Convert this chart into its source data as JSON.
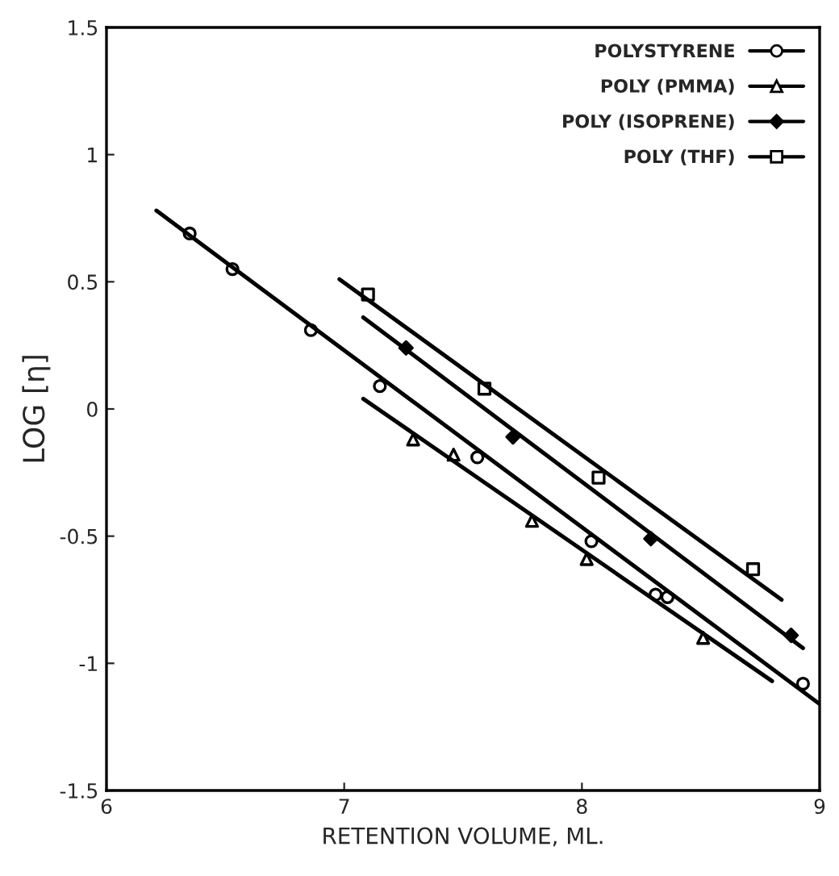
{
  "chart_data": {
    "type": "scatter",
    "xlabel": "RETENTION VOLUME, ML.",
    "ylabel": "LOG [η]",
    "xlim": [
      6,
      9
    ],
    "xticks": [
      6,
      7,
      8,
      9
    ],
    "ylim": [
      -1.5,
      1.5
    ],
    "yticks": [
      {
        "value": -1.5,
        "label": "-1.5"
      },
      {
        "value": -1,
        "label": "-1"
      },
      {
        "value": -0.5,
        "label": "-0.5"
      },
      0,
      0.5,
      1,
      1.5
    ],
    "legend": "top right",
    "grid": false,
    "series": [
      {
        "name": "POLYSTYRENE",
        "marker": "circle",
        "color": "#000000",
        "x": [
          6.35,
          6.53,
          6.86,
          7.15,
          7.56,
          8.04,
          8.31,
          8.36,
          8.93
        ],
        "values": [
          0.69,
          0.55,
          0.31,
          0.09,
          -0.19,
          -0.52,
          -0.73,
          -0.74,
          -1.08
        ]
      },
      {
        "name": "POLY (PMMA)",
        "marker": "triangle",
        "color": "#000000",
        "x": [
          7.29,
          7.46,
          7.79,
          8.02,
          8.51
        ],
        "values": [
          -0.12,
          -0.18,
          -0.44,
          -0.59,
          -0.9
        ]
      },
      {
        "name": "POLY (ISOPRENE)",
        "marker": "diamond",
        "color": "#000000",
        "x": [
          7.26,
          7.71,
          8.29,
          8.88
        ],
        "values": [
          0.24,
          -0.11,
          -0.51,
          -0.89
        ]
      },
      {
        "name": "POLY (THF)",
        "marker": "square",
        "color": "#000000",
        "x": [
          7.1,
          7.59,
          8.07,
          8.72
        ],
        "values": [
          0.45,
          0.08,
          -0.27,
          -0.63
        ]
      },
      {
        "type": "line",
        "marker": "none",
        "color": "#000000",
        "x": [
          6.21,
          9.0
        ],
        "values": [
          0.78,
          -1.16
        ]
      },
      {
        "type": "line",
        "marker": "none",
        "color": "#000000",
        "x": [
          7.08,
          8.8
        ],
        "values": [
          0.04,
          -1.07
        ]
      },
      {
        "type": "line",
        "marker": "none",
        "color": "#000000",
        "x": [
          7.08,
          8.93
        ],
        "values": [
          0.36,
          -0.94
        ]
      },
      {
        "type": "line",
        "marker": "none",
        "color": "#000000",
        "x": [
          6.98,
          8.84
        ],
        "values": [
          0.51,
          -0.75
        ]
      }
    ]
  }
}
